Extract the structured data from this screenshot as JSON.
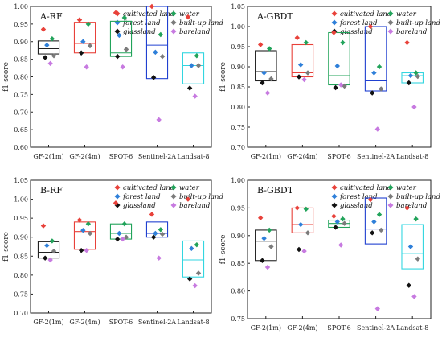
{
  "legend": [
    {
      "name": "cultivated land",
      "color": "#e8413a"
    },
    {
      "name": "water",
      "color": "#21a35a"
    },
    {
      "name": "forest land",
      "color": "#2e7fd9"
    },
    {
      "name": "built-up land",
      "color": "#7b7b7b"
    },
    {
      "name": "glassland",
      "color": "#111111"
    },
    {
      "name": "bareland",
      "color": "#c77ae0"
    }
  ],
  "chart_data": [
    {
      "type": "box",
      "title": "A-RF",
      "ylabel": "f1-score",
      "ylim": [
        0.6,
        1.0
      ],
      "yticks": [
        "0.60",
        "0.65",
        "0.70",
        "0.75",
        "0.80",
        "0.85",
        "0.90",
        "0.95",
        "1.00"
      ],
      "categories": [
        "GF-2(1m)",
        "GF-2(4m)",
        "SPOT-6",
        "Sentinel-2A",
        "Landsat-8"
      ],
      "box_colors": [
        "#222222",
        "#e8413a",
        "#21a35a",
        "#2040d0",
        "#33d6e0"
      ],
      "boxes": [
        {
          "q1": 0.865,
          "median": 0.88,
          "q3": 0.902
        },
        {
          "q1": 0.868,
          "median": 0.895,
          "q3": 0.955
        },
        {
          "q1": 0.858,
          "median": 0.868,
          "q3": 0.958
        },
        {
          "q1": 0.795,
          "median": 0.89,
          "q3": 1.0
        },
        {
          "q1": 0.78,
          "median": 0.832,
          "q3": 0.868
        }
      ],
      "points": [
        [
          0.935,
          0.908,
          0.89,
          0.86,
          0.855,
          0.838
        ],
        [
          0.962,
          0.95,
          0.9,
          0.888,
          0.868,
          0.828
        ],
        [
          0.982,
          0.968,
          0.918,
          0.878,
          0.858,
          0.828
        ],
        [
          1.0,
          0.92,
          0.87,
          0.858,
          0.798,
          0.678
        ],
        [
          0.97,
          0.86,
          0.832,
          0.832,
          0.768,
          0.745
        ]
      ]
    },
    {
      "type": "box",
      "title": "A-GBDT",
      "ylabel": "f1-score",
      "ylim": [
        0.7,
        1.05
      ],
      "yticks": [
        "0.70",
        "0.75",
        "0.80",
        "0.85",
        "0.90",
        "0.95",
        "1.00",
        "1.05"
      ],
      "categories": [
        "GF-2(1m)",
        "GF-2(4m)",
        "SPOT-6",
        "Sentinel-2A",
        "Landsat-8"
      ],
      "box_colors": [
        "#222222",
        "#e8413a",
        "#21a35a",
        "#2040d0",
        "#33d6e0"
      ],
      "boxes": [
        {
          "q1": 0.865,
          "median": 0.888,
          "q3": 0.94
        },
        {
          "q1": 0.875,
          "median": 0.885,
          "q3": 0.955
        },
        {
          "q1": 0.855,
          "median": 0.878,
          "q3": 0.985
        },
        {
          "q1": 0.84,
          "median": 0.865,
          "q3": 1.0
        },
        {
          "q1": 0.86,
          "median": 0.878,
          "q3": 0.885
        }
      ],
      "points": [
        [
          0.955,
          0.945,
          0.885,
          0.87,
          0.86,
          0.835
        ],
        [
          0.972,
          0.96,
          0.905,
          0.885,
          0.875,
          0.868
        ],
        [
          0.985,
          0.96,
          0.902,
          0.852,
          0.848,
          0.855
        ],
        [
          1.0,
          0.9,
          0.885,
          0.845,
          0.835,
          0.745
        ],
        [
          0.96,
          0.885,
          0.878,
          0.876,
          0.86,
          0.8
        ]
      ]
    },
    {
      "type": "box",
      "title": "B-RF",
      "ylabel": "f1-score",
      "ylim": [
        0.7,
        1.05
      ],
      "yticks": [
        "0.70",
        "0.75",
        "0.80",
        "0.85",
        "0.90",
        "0.95",
        "1.00",
        "1.05"
      ],
      "categories": [
        "GF-2(1m)",
        "GF-2(4m)",
        "SPOT-6",
        "Sentinel-2A",
        "Landsat-8"
      ],
      "box_colors": [
        "#222222",
        "#e8413a",
        "#21a35a",
        "#2040d0",
        "#33d6e0"
      ],
      "boxes": [
        {
          "q1": 0.845,
          "median": 0.86,
          "q3": 0.888
        },
        {
          "q1": 0.868,
          "median": 0.915,
          "q3": 0.94
        },
        {
          "q1": 0.895,
          "median": 0.91,
          "q3": 0.935
        },
        {
          "q1": 0.9,
          "median": 0.91,
          "q3": 0.94
        },
        {
          "q1": 0.795,
          "median": 0.84,
          "q3": 0.89
        }
      ],
      "points": [
        [
          0.93,
          0.89,
          0.878,
          0.863,
          0.845,
          0.84
        ],
        [
          0.945,
          0.935,
          0.918,
          0.91,
          0.865,
          0.865
        ],
        [
          0.99,
          0.935,
          0.91,
          0.9,
          0.895,
          0.895
        ],
        [
          0.96,
          0.92,
          0.91,
          0.908,
          0.9,
          0.845
        ],
        [
          1.0,
          0.88,
          0.87,
          0.805,
          0.79,
          0.772
        ]
      ]
    },
    {
      "type": "box",
      "title": "B-GBDT",
      "ylabel": "f1-score",
      "ylim": [
        0.75,
        1.0
      ],
      "yticks": [
        "0.75",
        "0.80",
        "0.85",
        "0.90",
        "0.95",
        "1.00"
      ],
      "categories": [
        "GF-2(1m)",
        "GF-2(4m)",
        "SPOT-6",
        "Sentinel-2A",
        "Landsat-8"
      ],
      "box_colors": [
        "#222222",
        "#e8413a",
        "#21a35a",
        "#2040d0",
        "#33d6e0"
      ],
      "boxes": [
        {
          "q1": 0.855,
          "median": 0.89,
          "q3": 0.91
        },
        {
          "q1": 0.905,
          "median": 0.92,
          "q3": 0.95
        },
        {
          "q1": 0.915,
          "median": 0.922,
          "q3": 0.928
        },
        {
          "q1": 0.885,
          "median": 0.912,
          "q3": 0.968
        },
        {
          "q1": 0.84,
          "median": 0.868,
          "q3": 0.92
        }
      ],
      "points": [
        [
          0.932,
          0.91,
          0.895,
          0.88,
          0.855,
          0.843
        ],
        [
          0.95,
          0.948,
          0.92,
          0.905,
          0.875,
          0.872
        ],
        [
          0.935,
          0.93,
          0.925,
          0.922,
          0.915,
          0.883
        ],
        [
          0.965,
          0.938,
          0.925,
          0.91,
          0.905,
          0.768
        ],
        [
          0.95,
          0.93,
          0.88,
          0.858,
          0.81,
          0.79
        ]
      ]
    }
  ]
}
